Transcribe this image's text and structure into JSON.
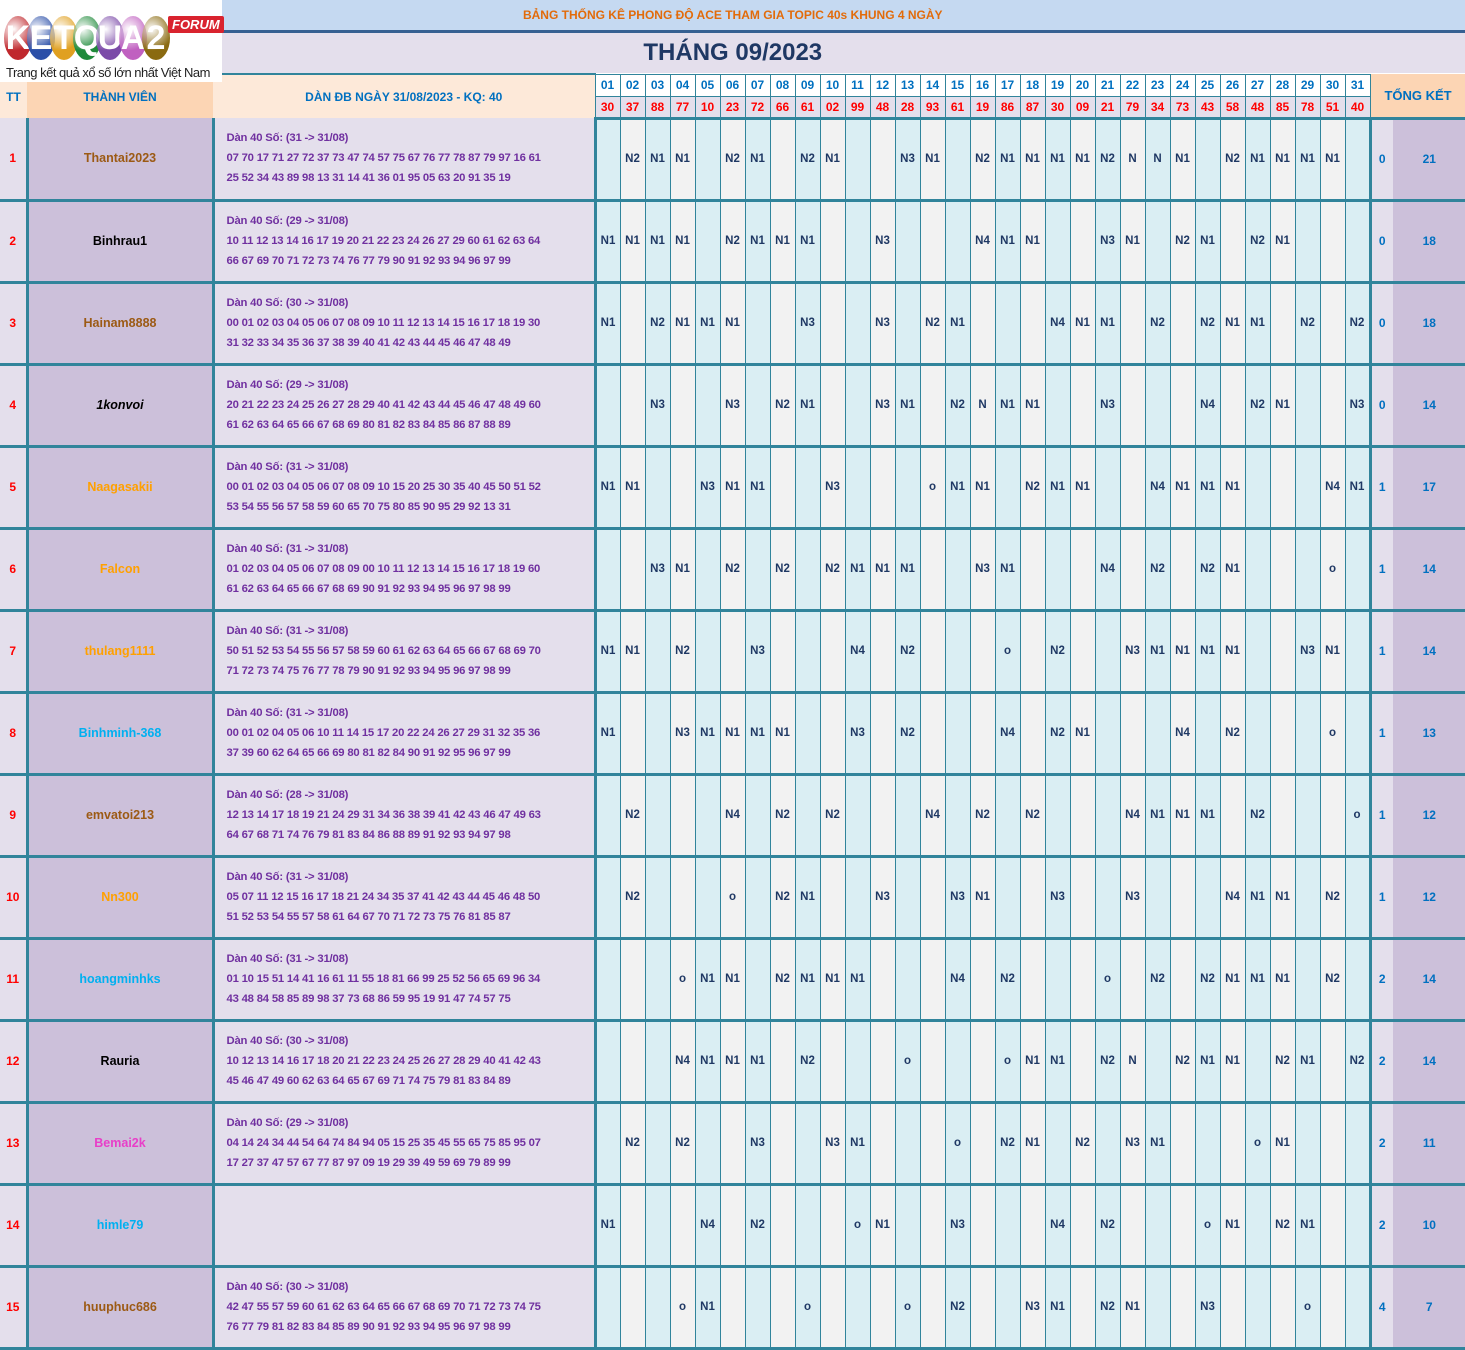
{
  "logo": {
    "letters": [
      "K",
      "E",
      "T",
      "Q",
      "U",
      "A",
      "2"
    ],
    "colors": [
      "#c0282d",
      "#2b4fa8",
      "#e0a020",
      "#1f8a3a",
      "#7b4aa8",
      "#c060c0",
      "#8a6a10"
    ],
    "badge": "FORUM",
    "tagline": "Trang kết quả xổ số lớn nhất Việt Nam"
  },
  "title": "BẢNG THỐNG KÊ PHONG ĐỘ ACE THAM GIA TOPIC 40s KHUNG 4 NGÀY",
  "month": "THÁNG 09/2023",
  "headers": {
    "tt": "TT",
    "member": "THÀNH VIÊN",
    "dan": "DÀN ĐB NGÀY 31/08/2023 - KQ: 40",
    "summary": "TỔNG KẾT"
  },
  "days": [
    "01",
    "02",
    "03",
    "04",
    "05",
    "06",
    "07",
    "08",
    "09",
    "10",
    "11",
    "12",
    "13",
    "14",
    "15",
    "16",
    "17",
    "18",
    "19",
    "20",
    "21",
    "22",
    "23",
    "24",
    "25",
    "26",
    "27",
    "28",
    "29",
    "30",
    "31"
  ],
  "results": [
    "30",
    "37",
    "88",
    "77",
    "10",
    "23",
    "72",
    "66",
    "61",
    "02",
    "99",
    "48",
    "28",
    "93",
    "61",
    "19",
    "86",
    "87",
    "30",
    "09",
    "21",
    "79",
    "34",
    "73",
    "43",
    "58",
    "48",
    "85",
    "78",
    "51",
    "40"
  ],
  "rows": [
    {
      "tt": "1",
      "name": "Thantai2023",
      "color": "#9c5a14",
      "dan_title": "Dàn 40 Số: (31 -> 31/08)",
      "dan1": "07 70 17 71 27 72 37 73 47 74 57 75 67 76 77 78 87 79 97 16 61",
      "dan2": "25 52 34 43 89 98 13 31 14 41 36 01 95 05 63 20 91 35 19",
      "cells": [
        "",
        "N2",
        "N1",
        "N1",
        "",
        "N2",
        "N1",
        "",
        "N2",
        "N1",
        "",
        "",
        "N3",
        "N1",
        "",
        "N2",
        "N1",
        "N1",
        "N1",
        "N1",
        "N2",
        "N",
        "N",
        "N1",
        "",
        "N2",
        "N1",
        "N1",
        "N1",
        "N1",
        ""
      ],
      "t1": "0",
      "t2": "21"
    },
    {
      "tt": "2",
      "name": "Binhrau1",
      "color": "#000000",
      "dan_title": "Dàn 40 Số: (29 -> 31/08)",
      "dan1": "10 11 12 13 14 16 17 19 20 21 22 23 24 26 27 29 60 61 62 63 64",
      "dan2": "66 67 69 70 71 72 73 74 76 77 79 90 91 92 93 94 96 97 99",
      "cells": [
        "N1",
        "N1",
        "N1",
        "N1",
        "",
        "N2",
        "N1",
        "N1",
        "N1",
        "",
        "",
        "N3",
        "",
        "",
        "",
        "N4",
        "N1",
        "N1",
        "",
        "",
        "N3",
        "N1",
        "",
        "N2",
        "N1",
        "",
        "N2",
        "N1",
        "",
        "",
        ""
      ],
      "t1": "0",
      "t2": "18"
    },
    {
      "tt": "3",
      "name": "Hainam8888",
      "color": "#9c5a14",
      "dan_title": "Dàn 40 Số: (30 -> 31/08)",
      "dan1": "00 01 02 03 04 05 06 07 08 09 10 11 12 13 14 15 16 17 18 19 30",
      "dan2": "31 32 33 34 35 36 37 38 39 40 41 42 43 44 45 46 47 48 49",
      "cells": [
        "N1",
        "",
        "N2",
        "N1",
        "N1",
        "N1",
        "",
        "",
        "N3",
        "",
        "",
        "N3",
        "",
        "N2",
        "N1",
        "",
        "",
        "",
        "N4",
        "N1",
        "N1",
        "",
        "N2",
        "",
        "N2",
        "N1",
        "N1",
        "",
        "N2",
        "",
        "N2"
      ],
      "t1": "0",
      "t2": "18"
    },
    {
      "tt": "4",
      "name": "1konvoi",
      "color": "#000000",
      "italic": true,
      "dan_title": "Dàn 40 Số: (29 -> 31/08)",
      "dan1": "20 21 22 23 24 25 26 27 28 29 40 41 42 43 44 45 46 47 48 49 60",
      "dan2": "61 62 63 64 65 66 67 68 69 80 81 82 83 84 85 86 87 88 89",
      "cells": [
        "",
        "",
        "N3",
        "",
        "",
        "N3",
        "",
        "N2",
        "N1",
        "",
        "",
        "N3",
        "N1",
        "",
        "N2",
        "N",
        "N1",
        "N1",
        "",
        "",
        "N3",
        "",
        "",
        "",
        "N4",
        "",
        "N2",
        "N1",
        "",
        "",
        "N3"
      ],
      "t1": "0",
      "t2": "14"
    },
    {
      "tt": "5",
      "name": "Naagasakii",
      "color": "#ffa000",
      "dan_title": "Dàn 40 Số: (31 -> 31/08)",
      "dan1": "00 01 02 03 04 05 06 07 08 09 10 15 20 25 30 35 40 45 50 51 52",
      "dan2": "53 54 55 56 57 58 59 60 65 70 75 80 85 90 95 29 92 13 31",
      "cells": [
        "N1",
        "N1",
        "",
        "",
        "N3",
        "N1",
        "N1",
        "",
        "",
        "N3",
        "",
        "",
        "",
        "o",
        "N1",
        "N1",
        "",
        "N2",
        "N1",
        "N1",
        "",
        "",
        "N4",
        "N1",
        "N1",
        "N1",
        "",
        "",
        "",
        "N4",
        "N1"
      ],
      "t1": "1",
      "t2": "17"
    },
    {
      "tt": "6",
      "name": "Falcon",
      "color": "#ffa000",
      "dan_title": "Dàn 40 Số: (31 -> 31/08)",
      "dan1": "01 02 03 04 05 06 07 08 09 00 10 11 12 13 14 15 16 17 18 19 60",
      "dan2": "61 62 63 64 65 66 67 68 69 90 91 92 93 94 95 96 97 98 99",
      "cells": [
        "",
        "",
        "N3",
        "N1",
        "",
        "N2",
        "",
        "N2",
        "",
        "N2",
        "N1",
        "N1",
        "N1",
        "",
        "",
        "N3",
        "N1",
        "",
        "",
        "",
        "N4",
        "",
        "N2",
        "",
        "N2",
        "N1",
        "",
        "",
        "",
        "o",
        ""
      ],
      "t1": "1",
      "t2": "14"
    },
    {
      "tt": "7",
      "name": "thulang1111",
      "color": "#ffa000",
      "dan_title": "Dàn 40 Số: (31 -> 31/08)",
      "dan1": "50 51 52 53 54 55 56 57 58 59 60 61 62 63 64 65 66 67 68 69 70",
      "dan2": "71 72 73 74 75 76 77 78 79 90 91 92 93 94 95 96 97 98 99",
      "cells": [
        "N1",
        "N1",
        "",
        "N2",
        "",
        "",
        "N3",
        "",
        "",
        "",
        "N4",
        "",
        "N2",
        "",
        "",
        "",
        "o",
        "",
        "N2",
        "",
        "",
        "N3",
        "N1",
        "N1",
        "N1",
        "N1",
        "",
        "",
        "N3",
        "N1",
        ""
      ],
      "t1": "1",
      "t2": "14"
    },
    {
      "tt": "8",
      "name": "Binhminh-368",
      "color": "#00b0f0",
      "dan_title": "Dàn 40 Số: (31 -> 31/08)",
      "dan1": "00 01 02 04 05 06 10 11 14 15 17 20 22 24 26 27 29 31 32 35 36",
      "dan2": "37 39 60 62 64 65 66 69 80 81 82 84 90 91 92 95 96 97 99",
      "cells": [
        "N1",
        "",
        "",
        "N3",
        "N1",
        "N1",
        "N1",
        "N1",
        "",
        "",
        "N3",
        "",
        "N2",
        "",
        "",
        "",
        "N4",
        "",
        "N2",
        "N1",
        "",
        "",
        "",
        "N4",
        "",
        "N2",
        "",
        "",
        "",
        "o",
        ""
      ],
      "t1": "1",
      "t2": "13"
    },
    {
      "tt": "9",
      "name": "emvatoi213",
      "color": "#9c5a14",
      "dan_title": "Dàn 40 Số: (28 -> 31/08)",
      "dan1": "12 13 14 17 18 19 21 24 29 31 34 36 38 39 41 42 43 46 47 49 63",
      "dan2": "64 67 68 71 74 76 79 81 83 84 86 88 89 91 92 93 94 97 98",
      "cells": [
        "",
        "N2",
        "",
        "",
        "",
        "N4",
        "",
        "N2",
        "",
        "N2",
        "",
        "",
        "",
        "N4",
        "",
        "N2",
        "",
        "N2",
        "",
        "",
        "",
        "N4",
        "N1",
        "N1",
        "N1",
        "",
        "N2",
        "",
        "",
        "",
        "o"
      ],
      "t1": "1",
      "t2": "12"
    },
    {
      "tt": "10",
      "name": "Nn300",
      "color": "#ffa000",
      "dan_title": "Dàn 40 Số: (31 -> 31/08)",
      "dan1": "05 07 11 12 15 16 17 18 21 24 34 35 37 41 42 43 44 45 46 48 50",
      "dan2": "51 52 53 54 55 57 58 61 64 67 70 71 72 73 75 76 81 85 87",
      "cells": [
        "",
        "N2",
        "",
        "",
        "",
        "o",
        "",
        "N2",
        "N1",
        "",
        "",
        "N3",
        "",
        "",
        "N3",
        "N1",
        "",
        "",
        "N3",
        "",
        "",
        "N3",
        "",
        "",
        "",
        "N4",
        "N1",
        "N1",
        "",
        "N2",
        ""
      ],
      "t1": "1",
      "t2": "12"
    },
    {
      "tt": "11",
      "name": "hoangminhks",
      "color": "#00b0f0",
      "dan_title": "Dàn 40 Số: (31 -> 31/08)",
      "dan1": "01 10 15 51 14 41 16 61 11 55 18 81 66 99 25 52 56 65 69 96 34",
      "dan2": "43 48 84 58 85 89 98 37 73 68 86 59 95 19 91 47 74 57 75",
      "cells": [
        "",
        "",
        "",
        "o",
        "N1",
        "N1",
        "",
        "N2",
        "N1",
        "N1",
        "N1",
        "",
        "",
        "",
        "N4",
        "",
        "N2",
        "",
        "",
        "",
        "o",
        "",
        "N2",
        "",
        "N2",
        "N1",
        "N1",
        "N1",
        "",
        "N2",
        ""
      ],
      "t1": "2",
      "t2": "14"
    },
    {
      "tt": "12",
      "name": "Rauria",
      "color": "#000000",
      "dan_title": "Dàn 40 Số: (30 -> 31/08)",
      "dan1": "10 12 13 14 16 17 18 20 21 22 23 24 25 26 27 28 29 40 41 42 43",
      "dan2": "45 46 47 49 60 62 63 64 65 67 69 71 74 75 79 81 83 84 89",
      "cells": [
        "",
        "",
        "",
        "N4",
        "N1",
        "N1",
        "N1",
        "",
        "N2",
        "",
        "",
        "",
        "o",
        "",
        "",
        "",
        "o",
        "N1",
        "N1",
        "",
        "N2",
        "N",
        "",
        "N2",
        "N1",
        "N1",
        "",
        "N2",
        "N1",
        "",
        "N2"
      ],
      "t1": "2",
      "t2": "14"
    },
    {
      "tt": "13",
      "name": "Bemai2k",
      "color": "#e83ec8",
      "dan_title": "Dàn 40 Số: (29 -> 31/08)",
      "dan1": "04 14 24 34 44 54 64 74 84 94 05 15 25 35 45 55 65 75 85 95 07",
      "dan2": "17 27 37 47 57 67 77 87 97 09 19 29 39 49 59 69 79 89 99",
      "cells": [
        "",
        "N2",
        "",
        "N2",
        "",
        "",
        "N3",
        "",
        "",
        "N3",
        "N1",
        "",
        "",
        "",
        "o",
        "",
        "N2",
        "N1",
        "",
        "N2",
        "",
        "N3",
        "N1",
        "",
        "",
        "",
        "o",
        "N1",
        "",
        "",
        ""
      ],
      "t1": "2",
      "t2": "11"
    },
    {
      "tt": "14",
      "name": "himle79",
      "color": "#00b0f0",
      "dan_title": "",
      "dan1": "",
      "dan2": "",
      "cells": [
        "N1",
        "",
        "",
        "",
        "N4",
        "",
        "N2",
        "",
        "",
        "",
        "o",
        "N1",
        "",
        "",
        "N3",
        "",
        "",
        "",
        "N4",
        "",
        "N2",
        "",
        "",
        "",
        "o",
        "N1",
        "",
        "N2",
        "N1",
        "",
        ""
      ],
      "t1": "2",
      "t2": "10"
    },
    {
      "tt": "15",
      "name": "huuphuc686",
      "color": "#9c5a14",
      "dan_title": "Dàn 40 Số: (30 -> 31/08)",
      "dan1": "42 47 55 57 59 60 61 62 63 64 65 66 67 68 69 70 71 72 73 74 75",
      "dan2": "76 77 79 81 82 83 84 85 89 90 91 92 93 94 95 96 97 98 99",
      "cells": [
        "",
        "",
        "",
        "o",
        "N1",
        "",
        "",
        "",
        "o",
        "",
        "",
        "",
        "o",
        "",
        "N2",
        "",
        "",
        "N3",
        "N1",
        "",
        "N2",
        "N1",
        "",
        "",
        "N3",
        "",
        "",
        "",
        "o",
        "",
        ""
      ],
      "t1": "4",
      "t2": "7"
    }
  ]
}
